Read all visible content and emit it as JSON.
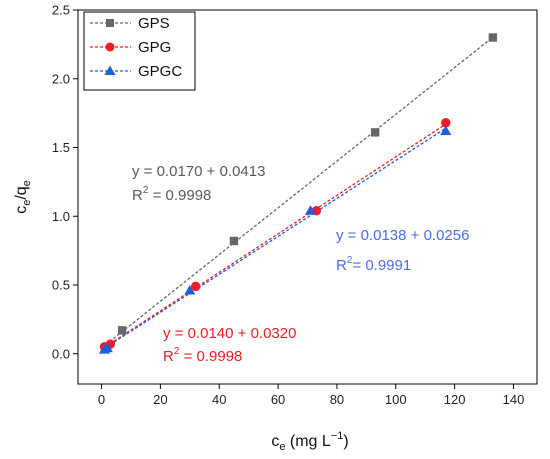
{
  "chart_data": {
    "type": "scatter",
    "xlabel": {
      "main": "c",
      "sub": "e",
      "unit": " (mg L",
      "sup": "−1",
      "close": ")"
    },
    "ylabel": {
      "c": "c",
      "e1": "e",
      "slash": "/q",
      "e2": "e"
    },
    "xlim": [
      -8,
      148
    ],
    "ylim": [
      -0.22,
      2.5
    ],
    "xticks": [
      0,
      20,
      40,
      60,
      80,
      100,
      120,
      140
    ],
    "yticks": [
      0.0,
      0.5,
      1.0,
      1.5,
      2.0,
      2.5
    ],
    "xtick_labels": [
      "0",
      "20",
      "40",
      "60",
      "80",
      "100",
      "120",
      "140"
    ],
    "ytick_labels": [
      "0.0",
      "0.5",
      "1.0",
      "1.5",
      "2.0",
      "2.5"
    ],
    "grid": false,
    "legend_position": "top-left",
    "series": [
      {
        "name": "GPS",
        "color": "#666666",
        "marker": "square",
        "x": [
          7,
          45,
          93,
          133
        ],
        "y": [
          0.17,
          0.82,
          1.61,
          2.3
        ],
        "fit": {
          "intercept": 0.0413,
          "slope": 0.017,
          "x_range": [
            0,
            133
          ]
        }
      },
      {
        "name": "GPG",
        "color": "#ee1c25",
        "marker": "circle",
        "x": [
          1,
          3,
          32,
          73,
          117
        ],
        "y": [
          0.05,
          0.07,
          0.49,
          1.04,
          1.68
        ],
        "fit": {
          "intercept": 0.032,
          "slope": 0.014,
          "x_range": [
            0,
            117
          ]
        }
      },
      {
        "name": "GPGC",
        "color": "#1f5fd6",
        "marker": "triangle",
        "x": [
          1,
          2,
          30,
          71,
          117
        ],
        "y": [
          0.03,
          0.04,
          0.46,
          1.04,
          1.62
        ],
        "fit": {
          "intercept": 0.0256,
          "slope": 0.0138,
          "x_range": [
            0,
            117
          ]
        }
      }
    ],
    "annotations": [
      {
        "eq": "y = 0.0170 + 0.0413",
        "r2_prefix": "R",
        "r2_sup": "2",
        "r2_value": " = 0.9998",
        "color": "#5a5a5a"
      },
      {
        "eq": "y = 0.0138 + 0.0256",
        "r2_prefix": "R",
        "r2_sup": "2",
        "r2_value": "= 0.9991",
        "color": "#4a6ee0"
      },
      {
        "eq": "y = 0.0140 + 0.0320",
        "r2_prefix": "R",
        "r2_sup": "2",
        "r2_value": " = 0.9998",
        "color": "#ee1c25"
      }
    ]
  }
}
